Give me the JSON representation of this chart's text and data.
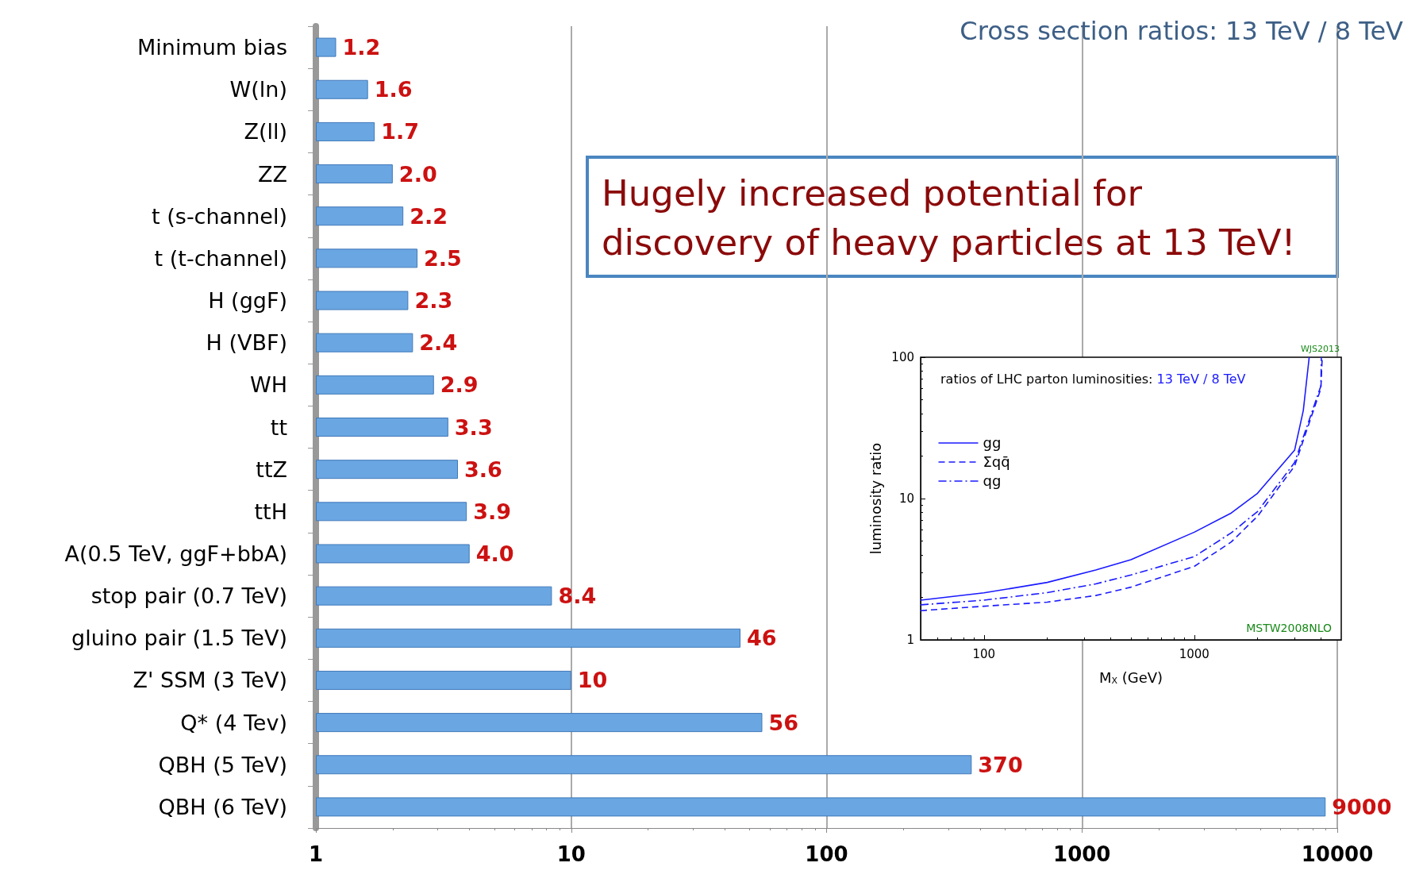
{
  "chart_data": [
    {
      "type": "bar",
      "orientation": "horizontal",
      "title": "Cross section ratios: 13 TeV / 8 TeV",
      "categories": [
        "Minimum bias",
        "W(ln)",
        "Z(ll)",
        "ZZ",
        "t (s-channel)",
        "t (t-channel)",
        "H (ggF)",
        "H (VBF)",
        "WH",
        "tt",
        "ttZ",
        "ttH",
        "A(0.5 TeV, ggF+bbA)",
        "stop pair (0.7 TeV)",
        "gluino pair (1.5 TeV)",
        "Z' SSM (3 TeV)",
        "Q* (4 Tev)",
        "QBH (5 TeV)",
        "QBH (6 TeV)"
      ],
      "values": [
        1.2,
        1.6,
        1.7,
        2.0,
        2.2,
        2.5,
        2.3,
        2.4,
        2.9,
        3.3,
        3.6,
        3.9,
        4.0,
        8.4,
        46,
        10,
        56,
        370,
        9000
      ],
      "value_labels": [
        "1.2",
        "1.6",
        "1.7",
        "2.0",
        "2.2",
        "2.5",
        "2.3",
        "2.4",
        "2.9",
        "3.3",
        "3.6",
        "3.9",
        "4.0",
        "8.4",
        "46",
        "10",
        "56",
        "370",
        "9000"
      ],
      "color": "#6aa6e2",
      "log": "x",
      "xlim": [
        1,
        10000
      ],
      "xticks": [
        1,
        10,
        100,
        1000,
        10000
      ],
      "grid": "x",
      "annotations": [
        "Hugely increased potential for discovery of heavy particles at 13 TeV!"
      ]
    },
    {
      "type": "line",
      "title": "ratios of LHC parton luminosities:",
      "subtitle": "13 TeV / 8 TeV",
      "xlabel": "M$_{X}$ (GeV)",
      "ylabel": "luminosity ratio",
      "log": "xy",
      "xlim": [
        50,
        5000
      ],
      "xticks": [
        100,
        1000
      ],
      "ylim": [
        1,
        100
      ],
      "yticks": [
        1,
        10,
        100
      ],
      "grid": false,
      "legend": "top left",
      "series": [
        {
          "name": "gg",
          "color": "#1a1aff",
          "line_style": "solid",
          "x": [
            50,
            100,
            200,
            340,
            500,
            1000,
            1500,
            2000,
            3000,
            3300,
            3520
          ],
          "values": [
            1.91,
            2.15,
            2.55,
            3.12,
            3.69,
            5.78,
            7.9,
            10.9,
            22,
            42,
            100
          ]
        },
        {
          "name": "Σqq̄",
          "color": "#1a1aff",
          "line_style": "dashed",
          "x": [
            50,
            100,
            200,
            340,
            500,
            1000,
            1500,
            2000,
            3000,
            4000,
            4060
          ],
          "values": [
            1.61,
            1.73,
            1.85,
            2.06,
            2.36,
            3.31,
            4.93,
            7.5,
            17,
            60,
            100
          ]
        },
        {
          "name": "qg",
          "color": "#1a1aff",
          "line_style": "dashdot",
          "x": [
            50,
            100,
            200,
            340,
            500,
            1000,
            1500,
            2000,
            3000,
            4000,
            4020
          ],
          "values": [
            1.77,
            1.91,
            2.16,
            2.49,
            2.88,
            3.88,
            5.72,
            8.1,
            18,
            62.6,
            100
          ]
        }
      ],
      "annotations": [
        "WJS2013",
        "MSTW2008NLO"
      ]
    }
  ]
}
